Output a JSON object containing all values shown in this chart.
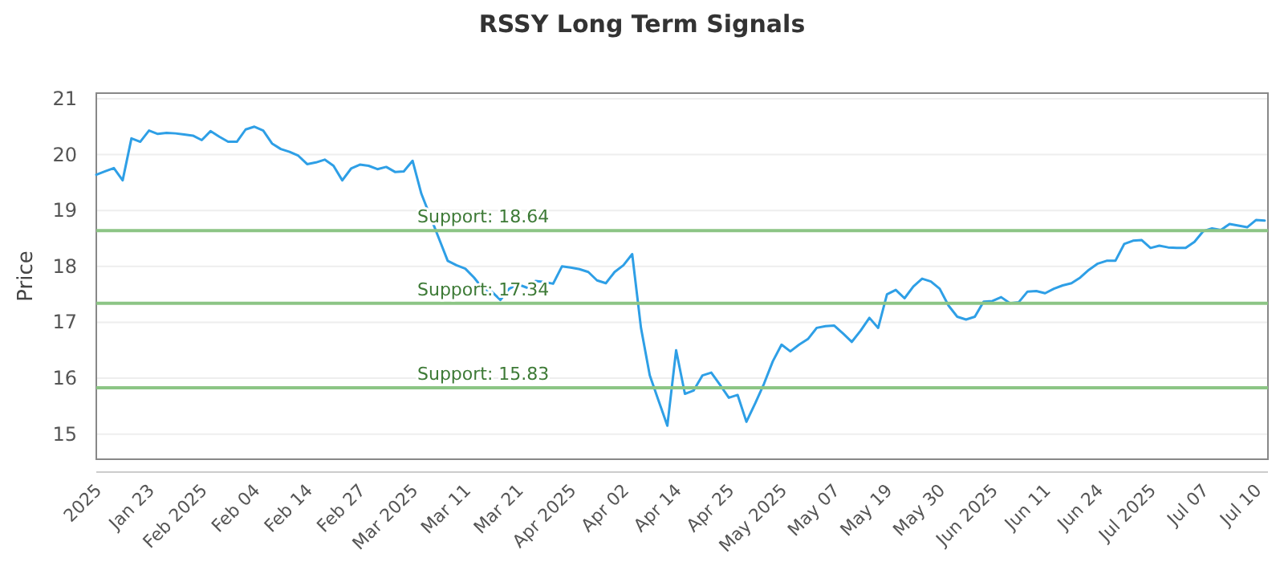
{
  "chart_data": {
    "type": "line",
    "title": "RSSY Long Term Signals",
    "ylabel": "Price",
    "categories": [
      "2025",
      null,
      null,
      null,
      null,
      null,
      "Jan 23",
      null,
      null,
      null,
      null,
      null,
      "Feb 2025",
      null,
      null,
      null,
      null,
      null,
      "Feb 04",
      null,
      null,
      null,
      null,
      null,
      "Feb 14",
      null,
      null,
      null,
      null,
      null,
      "Feb 27",
      null,
      null,
      null,
      null,
      null,
      "Mar 2025",
      null,
      null,
      null,
      null,
      null,
      "Mar 11",
      null,
      null,
      null,
      null,
      null,
      "Mar 21",
      null,
      null,
      null,
      null,
      null,
      "Apr 2025",
      null,
      null,
      null,
      null,
      null,
      "Apr 02",
      null,
      null,
      null,
      null,
      null,
      "Apr 14",
      null,
      null,
      null,
      null,
      null,
      "Apr 25",
      null,
      null,
      null,
      null,
      null,
      "May 2025",
      null,
      null,
      null,
      null,
      null,
      "May 07",
      null,
      null,
      null,
      null,
      null,
      "May 19",
      null,
      null,
      null,
      null,
      null,
      "May 30",
      null,
      null,
      null,
      null,
      null,
      "Jun 2025",
      null,
      null,
      null,
      null,
      null,
      "Jun 11",
      null,
      null,
      null,
      null,
      null,
      "Jun 24",
      null,
      null,
      null,
      null,
      null,
      "Jul 2025",
      null,
      null,
      null,
      null,
      null,
      "Jul 07",
      null,
      null,
      null,
      null,
      null,
      "Jul 10",
      null
    ],
    "series": [
      {
        "color": "#2e9fe6",
        "values": [
          19.64,
          19.7,
          19.76,
          19.54,
          20.29,
          20.23,
          20.43,
          20.37,
          20.39,
          20.38,
          20.36,
          20.34,
          20.26,
          20.42,
          20.32,
          20.23,
          20.23,
          20.45,
          20.5,
          20.43,
          20.2,
          20.1,
          20.05,
          19.98,
          19.83,
          19.86,
          19.91,
          19.8,
          19.54,
          19.75,
          19.82,
          19.8,
          19.74,
          19.78,
          19.69,
          19.7,
          19.89,
          19.3,
          18.9,
          18.5,
          18.1,
          18.02,
          17.96,
          17.8,
          17.6,
          17.55,
          17.4,
          17.6,
          17.68,
          17.62,
          17.74,
          17.72,
          17.69,
          18.0,
          17.98,
          17.95,
          17.9,
          17.75,
          17.7,
          17.9,
          18.02,
          18.22,
          16.9,
          16.05,
          15.6,
          15.15,
          16.5,
          15.72,
          15.78,
          16.05,
          16.1,
          15.88,
          15.65,
          15.7,
          15.22,
          15.55,
          15.9,
          16.3,
          16.6,
          16.48,
          16.6,
          16.7,
          16.9,
          16.93,
          16.94,
          16.8,
          16.65,
          16.85,
          17.08,
          16.9,
          17.5,
          17.58,
          17.43,
          17.64,
          17.78,
          17.73,
          17.6,
          17.3,
          17.1,
          17.05,
          17.1,
          17.37,
          17.38,
          17.45,
          17.34,
          17.36,
          17.55,
          17.56,
          17.52,
          17.6,
          17.66,
          17.7,
          17.8,
          17.94,
          18.05,
          18.1,
          18.1,
          18.4,
          18.46,
          18.47,
          18.33,
          18.37,
          18.34,
          18.33,
          18.33,
          18.44,
          18.63,
          18.68,
          18.65,
          18.76,
          18.73,
          18.7,
          18.83,
          18.82
        ]
      }
    ],
    "ylim": [
      14.55,
      21.1
    ],
    "yticks": [
      15,
      16,
      17,
      18,
      19,
      20,
      21
    ],
    "grid": "y",
    "marker": "none",
    "line_style": "solid",
    "ref_lines": [
      {
        "axis": "y",
        "value": 18.64,
        "label": "Support: 18.64",
        "color": "#8cc585"
      },
      {
        "axis": "y",
        "value": 17.34,
        "label": "Support: 17.34",
        "color": "#8cc585"
      },
      {
        "axis": "y",
        "value": 15.83,
        "label": "Support: 15.83",
        "color": "#8cc585"
      }
    ]
  }
}
